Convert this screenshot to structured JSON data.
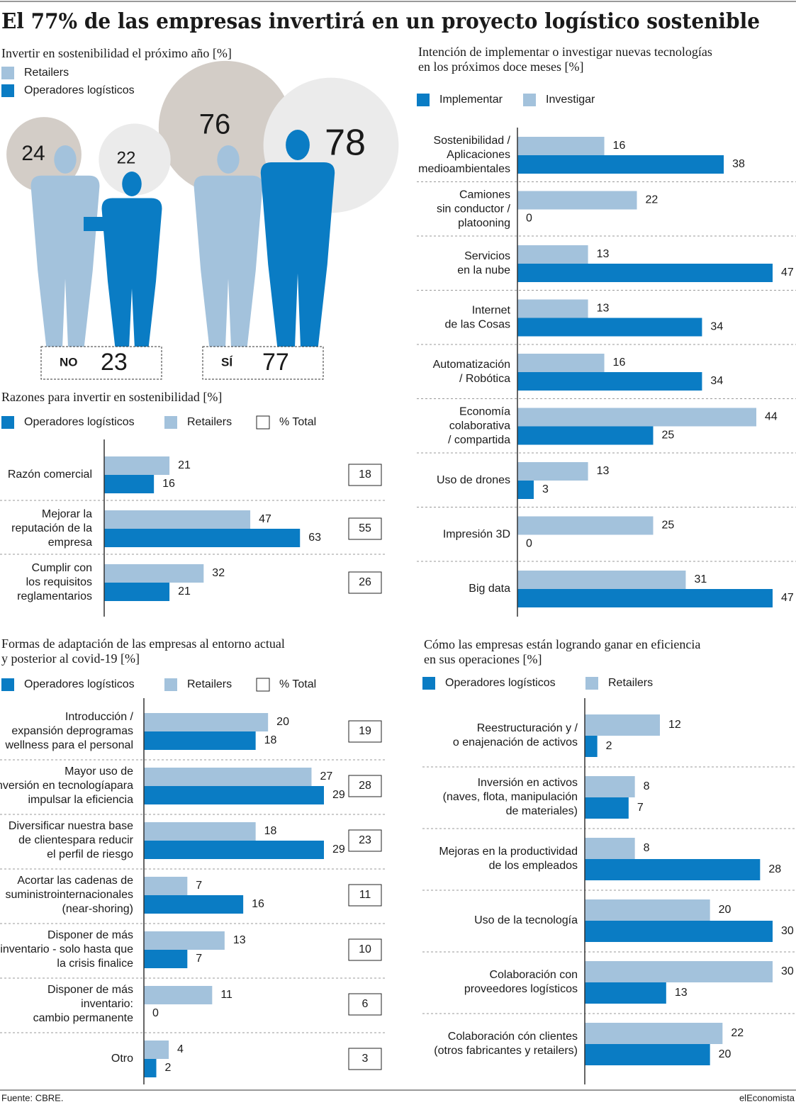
{
  "title": "El 77% de las empresas invertirá en un proyecto logístico sostenible",
  "source": "Fuente: CBRE.",
  "brand": "elEconomista",
  "chart_data": [
    {
      "type": "bubble",
      "title": [
        "Invertir en sostenibilidad el próximo año [%]"
      ],
      "categories": [
        "NO",
        "SÍ"
      ],
      "series": [
        {
          "name": "Operadores logísticos",
          "color": "#0a7cc4",
          "bubble_color": "#ebebeb",
          "values": [
            22,
            78
          ]
        },
        {
          "name": "Retailers",
          "color": "#a3c2dc",
          "bubble_color": "#d3cdc7",
          "values": [
            24,
            76
          ]
        }
      ],
      "totals": [
        23,
        77
      ]
    },
    {
      "type": "hbar",
      "title": [
        "Razones para invertir en sostenibilidad [%]"
      ],
      "categories": [
        [
          "Razón comercial"
        ],
        [
          "Mejorar la",
          "reputación de la",
          "empresa"
        ],
        [
          "Cumplir con",
          "los requisitos",
          "reglamentarios"
        ]
      ],
      "series": [
        {
          "name": "Operadores logísticos",
          "color": "#0a7cc4",
          "values": [
            16,
            63,
            21
          ]
        },
        {
          "name": "Retailers",
          "color": "#a3c2dc",
          "values": [
            21,
            47,
            32
          ]
        }
      ],
      "total": {
        "name": "% Total",
        "values": [
          18,
          55,
          26
        ]
      },
      "xlim": [
        0,
        65
      ]
    },
    {
      "type": "hbar",
      "title": [
        "Intención de implementar o investigar nuevas tecnologías",
        "en los próximos doce meses [%]"
      ],
      "categories": [
        [
          "Sostenibilidad /",
          "Aplicaciones",
          "medioambientales"
        ],
        [
          "Camiones",
          "sin conductor /",
          "platooning"
        ],
        [
          "Servicios",
          "en la nube"
        ],
        [
          "Internet",
          "de las Cosas"
        ],
        [
          "Automatización",
          "/ Robótica"
        ],
        [
          "Economía",
          "colaborativa",
          "/ compartida"
        ],
        [
          "Uso de drones"
        ],
        [
          "Impresión 3D"
        ],
        [
          "Big data"
        ]
      ],
      "series": [
        {
          "name": "Implementar",
          "color": "#0a7cc4",
          "values": [
            38,
            0,
            47,
            34,
            34,
            25,
            3,
            0,
            47
          ]
        },
        {
          "name": "Investigar",
          "color": "#a3c2dc",
          "values": [
            16,
            22,
            13,
            13,
            16,
            44,
            13,
            25,
            31
          ]
        }
      ],
      "xlim": [
        0,
        47
      ]
    },
    {
      "type": "hbar",
      "title": [
        "Formas de adaptación de las empresas al entorno actual",
        "y posterior al covid-19 [%]"
      ],
      "categories": [
        [
          "Introducción /",
          "expansión deprogramas",
          "wellness para el personal"
        ],
        [
          "Mayor uso de",
          "inversión en tecnologíapara",
          "impulsar la eficiencia"
        ],
        [
          "Diversificar nuestra base",
          "de clientespara reducir",
          "el perfil de riesgo"
        ],
        [
          "Acortar las cadenas de",
          "suministrointernacionales",
          "(near-shoring)"
        ],
        [
          "Disponer de más",
          "inventario - solo hasta que",
          "la crisis finalice"
        ],
        [
          "Disponer de más",
          "inventario:",
          "cambio permanente"
        ],
        [
          "Otro"
        ]
      ],
      "series": [
        {
          "name": "Operadores logísticos",
          "color": "#0a7cc4",
          "values": [
            18,
            29,
            29,
            16,
            7,
            0,
            2
          ]
        },
        {
          "name": "Retailers",
          "color": "#a3c2dc",
          "values": [
            20,
            27,
            18,
            7,
            13,
            11,
            4
          ]
        }
      ],
      "total": {
        "name": "% Total",
        "values": [
          19,
          28,
          23,
          11,
          10,
          6,
          3
        ]
      },
      "xlim": [
        0,
        29
      ]
    },
    {
      "type": "hbar",
      "title": [
        "Cómo las empresas están logrando ganar en eficiencia",
        "en sus operaciones [%]"
      ],
      "categories": [
        [
          "Reestructuración y /",
          "o enajenación de activos"
        ],
        [
          "Inversión en activos",
          "(naves, flota, manipulación",
          "de materiales)"
        ],
        [
          "Mejoras en la productividad",
          "de los empleados"
        ],
        [
          "Uso de la tecnología"
        ],
        [
          "Colaboración con",
          "proveedores logísticos"
        ],
        [
          "Colaboración cón clientes",
          "(otros fabricantes y retailers)"
        ]
      ],
      "series": [
        {
          "name": "Operadores logísticos",
          "color": "#0a7cc4",
          "values": [
            2,
            7,
            28,
            30,
            13,
            20
          ]
        },
        {
          "name": "Retailers",
          "color": "#a3c2dc",
          "values": [
            12,
            8,
            8,
            20,
            30,
            22
          ]
        }
      ],
      "xlim": [
        0,
        30
      ]
    }
  ]
}
